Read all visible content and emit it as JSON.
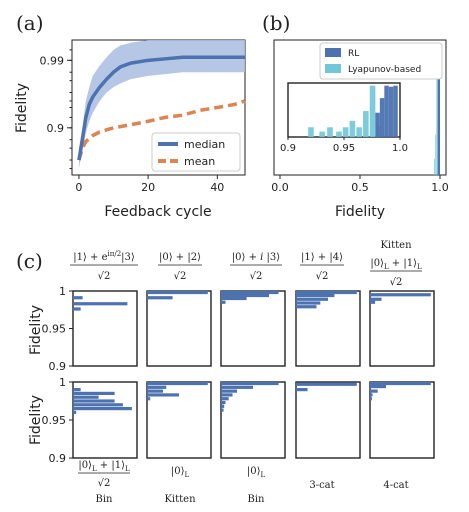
{
  "panel_labels": {
    "a": "(a)",
    "b": "(b)",
    "c": "(c)"
  },
  "chart_data": [
    {
      "panel": "(a)",
      "type": "line",
      "xlabel": "Feedback cycle",
      "ylabel": "Fidelity",
      "xlim": [
        -2,
        48
      ],
      "x_ticks": [
        0,
        20,
        40
      ],
      "x_tick_labels": [
        "0",
        "20",
        "40"
      ],
      "y_scale": "log(1-F)",
      "y_ticks": [
        0.9,
        0.99
      ],
      "y_tick_labels": [
        "0.9",
        "0.99"
      ],
      "legend": {
        "position": "lower-right",
        "entries": [
          "median",
          "mean"
        ]
      },
      "colors": {
        "median": "#4c72b0",
        "band": "#a9bde0",
        "mean": "#dd8452"
      },
      "series": [
        {
          "name": "median",
          "style": "solid",
          "x": [
            0,
            1,
            2,
            3,
            4,
            6,
            8,
            10,
            12,
            15,
            20,
            25,
            30,
            35,
            40,
            45,
            48
          ],
          "y": [
            0.7,
            0.85,
            0.93,
            0.955,
            0.965,
            0.975,
            0.981,
            0.985,
            0.9875,
            0.989,
            0.99,
            0.9905,
            0.991,
            0.991,
            0.991,
            0.991,
            0.991
          ],
          "band_lower": [
            0.6,
            0.78,
            0.88,
            0.92,
            0.94,
            0.96,
            0.97,
            0.975,
            0.978,
            0.981,
            0.983,
            0.984,
            0.985,
            0.985,
            0.985,
            0.985,
            0.985
          ],
          "band_upper": [
            0.8,
            0.9,
            0.96,
            0.975,
            0.983,
            0.988,
            0.991,
            0.993,
            0.994,
            0.9945,
            0.995,
            0.995,
            0.995,
            0.995,
            0.995,
            0.995,
            0.995
          ]
        },
        {
          "name": "mean",
          "style": "dashed",
          "x": [
            0,
            1,
            2,
            4,
            6,
            8,
            10,
            15,
            20,
            25,
            30,
            35,
            40,
            45,
            48
          ],
          "y": [
            0.7,
            0.8,
            0.84,
            0.87,
            0.885,
            0.893,
            0.9,
            0.91,
            0.92,
            0.93,
            0.935,
            0.945,
            0.95,
            0.955,
            0.96
          ]
        }
      ]
    },
    {
      "panel": "(b)",
      "type": "bar",
      "xlabel": "Fidelity",
      "xlim": [
        0.0,
        1.0
      ],
      "x_ticks": [
        0.0,
        0.5,
        1.0
      ],
      "x_tick_labels": [
        "0.0",
        "0.5",
        "1.0"
      ],
      "legend": {
        "position": "top-right",
        "entries": [
          "RL",
          "Lyapunov-based"
        ]
      },
      "colors": {
        "RL": "#4c72b0",
        "Lyapunov-based": "#6fc7d8"
      },
      "main_bars": {
        "RL": [
          {
            "x0": 0.985,
            "x1": 1.0,
            "h": 0.95
          }
        ],
        "Lyapunov-based": [
          {
            "x0": 0.962,
            "x1": 0.968,
            "h": 0.12
          },
          {
            "x0": 0.97,
            "x1": 0.976,
            "h": 0.3
          },
          {
            "x0": 0.977,
            "x1": 0.983,
            "h": 0.75
          },
          {
            "x0": 0.984,
            "x1": 0.99,
            "h": 0.4
          }
        ]
      },
      "inset": {
        "xlim": [
          0.9,
          1.0
        ],
        "x_ticks": [
          0.9,
          0.95,
          1.0
        ],
        "x_tick_labels": [
          "0.9",
          "0.95",
          "1.0"
        ],
        "bars": {
          "RL": [
            {
              "x0": 0.978,
              "x1": 0.982,
              "h": 0.45
            },
            {
              "x0": 0.982,
              "x1": 0.986,
              "h": 0.72
            },
            {
              "x0": 0.986,
              "x1": 0.99,
              "h": 0.95
            },
            {
              "x0": 0.99,
              "x1": 0.994,
              "h": 0.93
            },
            {
              "x0": 0.994,
              "x1": 0.998,
              "h": 0.95
            }
          ],
          "Lyapunov-based": [
            {
              "x0": 0.918,
              "x1": 0.923,
              "h": 0.18
            },
            {
              "x0": 0.928,
              "x1": 0.933,
              "h": 0.1
            },
            {
              "x0": 0.935,
              "x1": 0.94,
              "h": 0.18
            },
            {
              "x0": 0.943,
              "x1": 0.948,
              "h": 0.1
            },
            {
              "x0": 0.949,
              "x1": 0.954,
              "h": 0.18
            },
            {
              "x0": 0.955,
              "x1": 0.96,
              "h": 0.3
            },
            {
              "x0": 0.961,
              "x1": 0.966,
              "h": 0.18
            },
            {
              "x0": 0.967,
              "x1": 0.972,
              "h": 0.48
            },
            {
              "x0": 0.973,
              "x1": 0.978,
              "h": 0.95
            },
            {
              "x0": 0.979,
              "x1": 0.983,
              "h": 0.2
            }
          ]
        }
      }
    },
    {
      "panel": "(c)",
      "type": "bar",
      "orientation": "horizontal",
      "ylabel": "Fidelity",
      "ylim": [
        0.9,
        1.0
      ],
      "y_ticks": [
        0.9,
        0.95,
        1.0
      ],
      "y_tick_labels": [
        "0.9",
        "0.95",
        "1"
      ],
      "bar_color": "#4c72b0",
      "top_row": [
        {
          "label": "|1⟩ + e^{iπ/2}|3⟩ / √2",
          "fidelities": [
            0.991,
            0.983,
            0.976
          ],
          "counts": [
            0.15,
            0.85,
            0.12
          ]
        },
        {
          "label": "|0⟩ + |2⟩ / √2",
          "fidelities": [
            0.998,
            0.991
          ],
          "counts": [
            0.95,
            0.4
          ]
        },
        {
          "label": "|0⟩ + i|3⟩ / √2",
          "fidelities": [
            0.998,
            0.994,
            0.99,
            0.985
          ],
          "counts": [
            0.9,
            0.75,
            0.4,
            0.07
          ]
        },
        {
          "label": "|1⟩ + |4⟩ / √2",
          "fidelities": [
            0.998,
            0.994,
            0.989,
            0.984,
            0.979
          ],
          "counts": [
            0.95,
            0.6,
            0.5,
            0.38,
            0.32
          ]
        },
        {
          "label": "Kitten (|0⟩_L + |1⟩_L) / √2",
          "fidelities": [
            0.995,
            0.989,
            0.985
          ],
          "counts": [
            0.95,
            0.18,
            0.08
          ]
        }
      ],
      "bottom_row": [
        {
          "label": "Bin (|0⟩_L + |1⟩_L) / √2",
          "fidelities": [
            0.99,
            0.985,
            0.98,
            0.975,
            0.97,
            0.965,
            0.96
          ],
          "counts": [
            0.12,
            0.65,
            0.4,
            0.65,
            0.78,
            0.92,
            0.05
          ]
        },
        {
          "label": "Kitten |0⟩_L",
          "fidelities": [
            0.998,
            0.993,
            0.988,
            0.983,
            0.978
          ],
          "counts": [
            0.95,
            0.3,
            0.25,
            0.5,
            0.05
          ]
        },
        {
          "label": "Bin |0⟩_L",
          "fidelities": [
            0.998,
            0.993,
            0.988,
            0.983,
            0.978,
            0.973,
            0.968,
            0.963
          ],
          "counts": [
            0.9,
            0.5,
            0.25,
            0.18,
            0.12,
            0.07,
            0.05,
            0.04
          ]
        },
        {
          "label": "3-cat",
          "fidelities": [
            0.997,
            0.99
          ],
          "counts": [
            0.95,
            0.18
          ]
        },
        {
          "label": "4-cat",
          "fidelities": [
            0.998,
            0.994,
            0.988,
            0.983,
            0.978
          ],
          "counts": [
            0.95,
            0.25,
            0.12,
            0.04,
            0.03
          ]
        }
      ]
    }
  ]
}
